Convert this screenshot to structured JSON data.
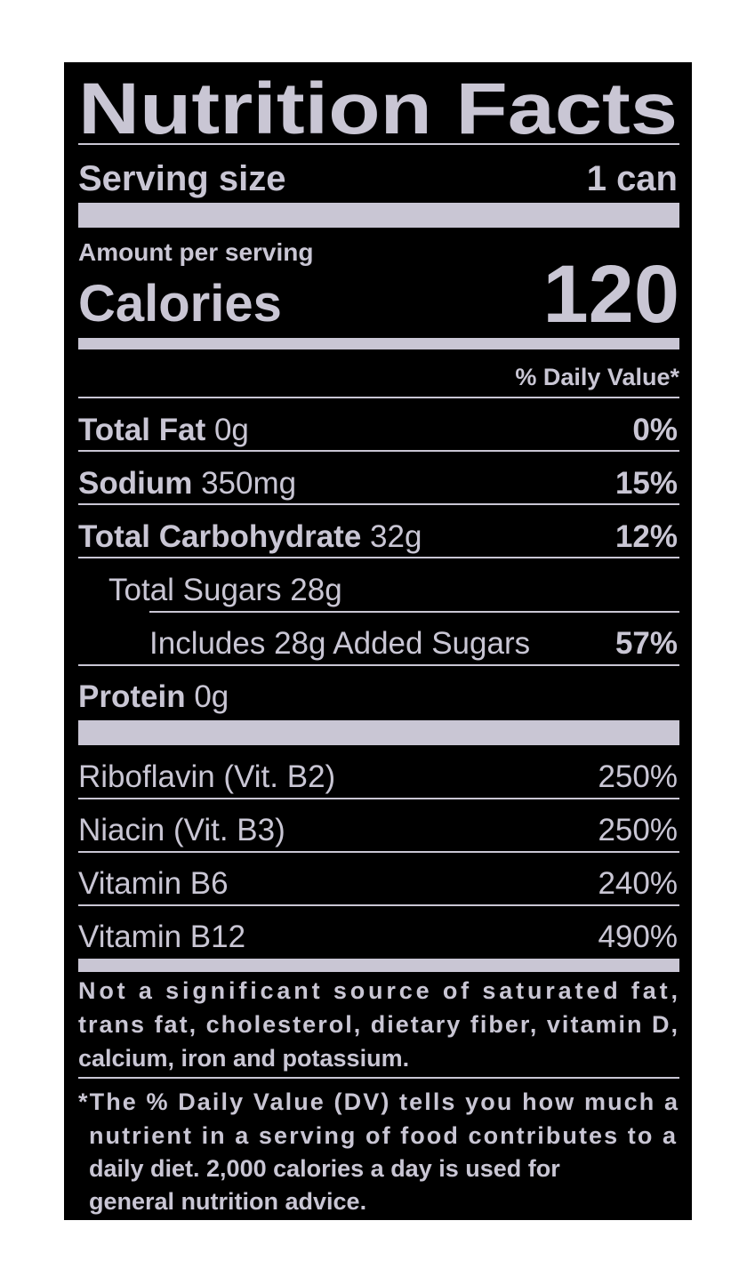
{
  "header": {
    "title": "Nutrition Facts",
    "serving_size_label": "Serving size",
    "serving_size": "1 can"
  },
  "calories": {
    "amount_label": "Amount per serving",
    "label": "Calories",
    "value": "120"
  },
  "daily_value_header": "% Daily Value*",
  "nutrients": [
    {
      "name": "Total Fat",
      "amount": "0g",
      "daily_value": "0%"
    },
    {
      "name": "Sodium",
      "amount": "350mg",
      "daily_value": "15%"
    },
    {
      "name": "Total Carbohydrate",
      "amount": "32g",
      "daily_value": "12%"
    },
    {
      "name": "Total Sugars 28g"
    },
    {
      "name": "Includes 28g Added Sugars",
      "daily_value": "57%"
    },
    {
      "name": "Protein",
      "amount": "0g"
    }
  ],
  "vitamins": [
    {
      "name": "Riboflavin (Vit. B2)",
      "daily_value": "250%"
    },
    {
      "name": "Niacin (Vit. B3)",
      "daily_value": "250%"
    },
    {
      "name": "Vitamin B6",
      "daily_value": "240%"
    },
    {
      "name": "Vitamin B12",
      "daily_value": "490%"
    }
  ],
  "footnotes": [
    [
      "Not a significant source of saturated fat,",
      "trans fat, cholesterol, dietary fiber, vitamin D,",
      "calcium, iron and potassium."
    ],
    [
      "*The % Daily Value (DV) tells you how much a",
      "nutrient in a serving of food contributes to a",
      "daily diet. 2,000 calories a day is used for",
      "general nutrition advice."
    ]
  ]
}
